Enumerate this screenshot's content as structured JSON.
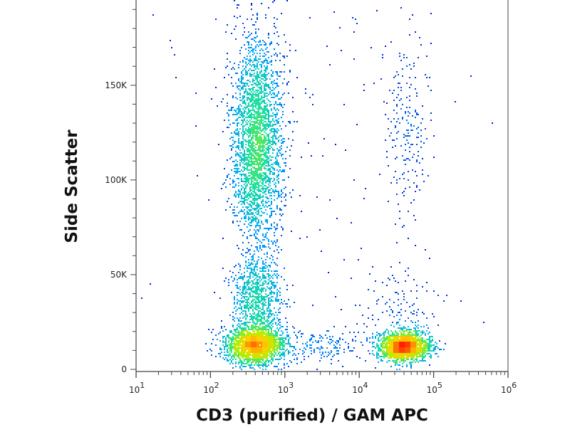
{
  "chart_data": {
    "type": "scatter",
    "subtype": "flow-cytometry-density-dot-plot",
    "title": "",
    "xlabel": "CD3 (purified) / GAM APC",
    "ylabel": "Side Scatter",
    "xscale": "log",
    "xlim": [
      10,
      1000000
    ],
    "ylim": [
      0,
      195000
    ],
    "x_ticks": [
      {
        "value": 10,
        "base": "10",
        "exp": "1"
      },
      {
        "value": 100,
        "base": "10",
        "exp": "2"
      },
      {
        "value": 1000,
        "base": "10",
        "exp": "3"
      },
      {
        "value": 10000,
        "base": "10",
        "exp": "4"
      },
      {
        "value": 100000,
        "base": "10",
        "exp": "5"
      },
      {
        "value": 1000000,
        "base": "10",
        "exp": "6"
      }
    ],
    "y_ticks": [
      {
        "value": 0,
        "label": "0"
      },
      {
        "value": 50000,
        "label": "50K"
      },
      {
        "value": 100000,
        "label": "100K"
      },
      {
        "value": 150000,
        "label": "150K"
      }
    ],
    "grid": false,
    "color_scale": [
      "#0000c8",
      "#00a0ff",
      "#20e0a0",
      "#b0f000",
      "#ffd000",
      "#ff2000"
    ],
    "populations": [
      {
        "name": "CD3- low SSC",
        "x_log10_center": 2.58,
        "x_log10_sd": 0.2,
        "y_center": 13000,
        "y_sd": 5000,
        "count": 2200
      },
      {
        "name": "CD3- mid SSC",
        "x_log10_center": 2.62,
        "x_log10_sd": 0.17,
        "y_center": 37000,
        "y_sd": 11000,
        "count": 900
      },
      {
        "name": "CD3- high SSC",
        "x_log10_center": 2.62,
        "x_log10_sd": 0.17,
        "y_center": 120000,
        "y_sd": 28000,
        "count": 3000
      },
      {
        "name": "CD3+ low SSC",
        "x_log10_center": 4.6,
        "x_log10_sd": 0.17,
        "y_center": 12500,
        "y_sd": 3800,
        "count": 2000
      },
      {
        "name": "CD3+ high SSC",
        "x_log10_center": 4.62,
        "x_log10_sd": 0.15,
        "y_center": 125000,
        "y_sd": 25000,
        "count": 220
      },
      {
        "name": "CD3+ mid SSC",
        "x_log10_center": 4.6,
        "x_log10_sd": 0.28,
        "y_center": 30000,
        "y_sd": 12000,
        "count": 150
      },
      {
        "name": "bridge",
        "x_log10_center": 3.4,
        "x_log10_sd": 0.4,
        "y_center": 13000,
        "y_sd": 5000,
        "count": 180
      },
      {
        "name": "background",
        "x_log10_center": 3.3,
        "x_log10_sd": 0.9,
        "y_center": 80000,
        "y_sd": 60000,
        "count": 140
      }
    ]
  }
}
